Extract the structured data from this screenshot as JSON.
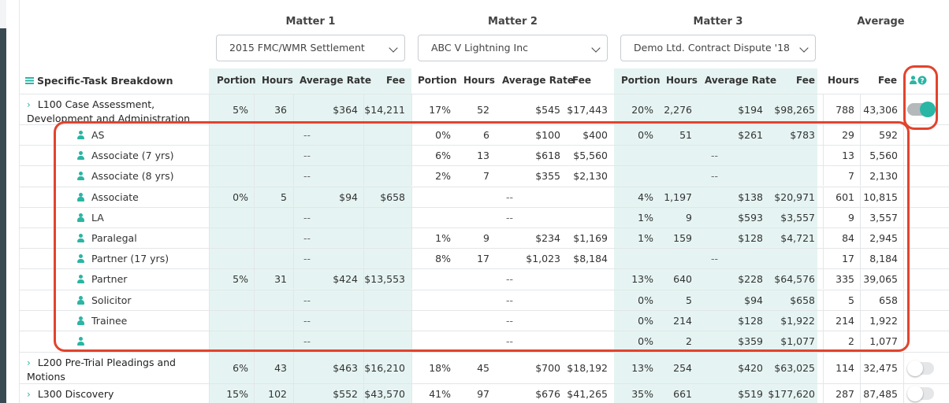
{
  "matters": [
    {
      "title": "Matter 1",
      "selected": "2015 FMC/WMR Settlement"
    },
    {
      "title": "Matter 2",
      "selected": "ABC V Lightning Inc"
    },
    {
      "title": "Matter 3",
      "selected": "Demo Ltd. Contract Dispute '18"
    }
  ],
  "average_title": "Average",
  "section_title": "Specific-Task Breakdown",
  "columns": {
    "portion": "Portion",
    "hours": "Hours",
    "avg_rate": "Average Rate",
    "fee": "Fee"
  },
  "tasks": [
    {
      "label": "L100 Case Assessment, Development and Administration",
      "m1": [
        "5%",
        "36",
        "$364",
        "$14,211"
      ],
      "m2": [
        "17%",
        "52",
        "$545",
        "$17,443"
      ],
      "m3": [
        "20%",
        "2,276",
        "$194",
        "$98,265"
      ],
      "avg": [
        "788",
        "43,306"
      ],
      "toggle": true
    },
    {
      "label": "L200 Pre-Trial Pleadings and Motions",
      "m1": [
        "6%",
        "43",
        "$463",
        "$16,210"
      ],
      "m2": [
        "18%",
        "45",
        "$700",
        "$18,192"
      ],
      "m3": [
        "13%",
        "254",
        "$420",
        "$63,025"
      ],
      "avg": [
        "114",
        "32,475"
      ],
      "toggle": false
    },
    {
      "label": "L300 Discovery",
      "m1": [
        "15%",
        "102",
        "$552",
        "$43,570"
      ],
      "m2": [
        "41%",
        "97",
        "$676",
        "$41,265"
      ],
      "m3": [
        "35%",
        "661",
        "$519",
        "$177,620"
      ],
      "avg": [
        "287",
        "87,485"
      ],
      "toggle": false
    }
  ],
  "empty_marker": "--",
  "roles": [
    {
      "name": "AS",
      "m1": null,
      "m2": [
        "0%",
        "6",
        "$100",
        "$400"
      ],
      "m3": [
        "0%",
        "51",
        "$261",
        "$783"
      ],
      "avg": [
        "29",
        "592"
      ]
    },
    {
      "name": "Associate (7 yrs)",
      "m1": null,
      "m2": [
        "6%",
        "13",
        "$618",
        "$5,560"
      ],
      "m3": null,
      "avg": [
        "13",
        "5,560"
      ]
    },
    {
      "name": "Associate (8 yrs)",
      "m1": null,
      "m2": [
        "2%",
        "7",
        "$355",
        "$2,130"
      ],
      "m3": null,
      "avg": [
        "7",
        "2,130"
      ]
    },
    {
      "name": "Associate",
      "m1": [
        "0%",
        "5",
        "$94",
        "$658"
      ],
      "m2": null,
      "m3": [
        "4%",
        "1,197",
        "$138",
        "$20,971"
      ],
      "avg": [
        "601",
        "10,815"
      ]
    },
    {
      "name": "LA",
      "m1": null,
      "m2": null,
      "m3": [
        "1%",
        "9",
        "$593",
        "$3,557"
      ],
      "avg": [
        "9",
        "3,557"
      ]
    },
    {
      "name": "Paralegal",
      "m1": null,
      "m2": [
        "1%",
        "9",
        "$234",
        "$1,169"
      ],
      "m3": [
        "1%",
        "159",
        "$128",
        "$4,721"
      ],
      "avg": [
        "84",
        "2,945"
      ]
    },
    {
      "name": "Partner (17 yrs)",
      "m1": null,
      "m2": [
        "8%",
        "17",
        "$1,023",
        "$8,184"
      ],
      "m3": null,
      "avg": [
        "17",
        "8,184"
      ]
    },
    {
      "name": "Partner",
      "m1": [
        "5%",
        "31",
        "$424",
        "$13,553"
      ],
      "m2": null,
      "m3": [
        "13%",
        "640",
        "$228",
        "$64,576"
      ],
      "avg": [
        "335",
        "39,065"
      ]
    },
    {
      "name": "Solicitor",
      "m1": null,
      "m2": null,
      "m3": [
        "0%",
        "5",
        "$94",
        "$658"
      ],
      "avg": [
        "5",
        "658"
      ]
    },
    {
      "name": "Trainee",
      "m1": null,
      "m2": null,
      "m3": [
        "0%",
        "214",
        "$128",
        "$1,922"
      ],
      "avg": [
        "214",
        "1,922"
      ]
    },
    {
      "name": "",
      "m1": null,
      "m2": null,
      "m3": [
        "0%",
        "2",
        "$359",
        "$1,077"
      ],
      "avg": [
        "2",
        "1,077"
      ]
    }
  ],
  "colors": {
    "accent": "#2bb5a4",
    "band": "#e5f4f2",
    "highlight": "#e2432d"
  },
  "icons": {
    "section": "list-icon",
    "header": [
      "person-icon",
      "help-circle-icon"
    ],
    "role": "person-icon",
    "expand": "chevron-right-icon"
  }
}
